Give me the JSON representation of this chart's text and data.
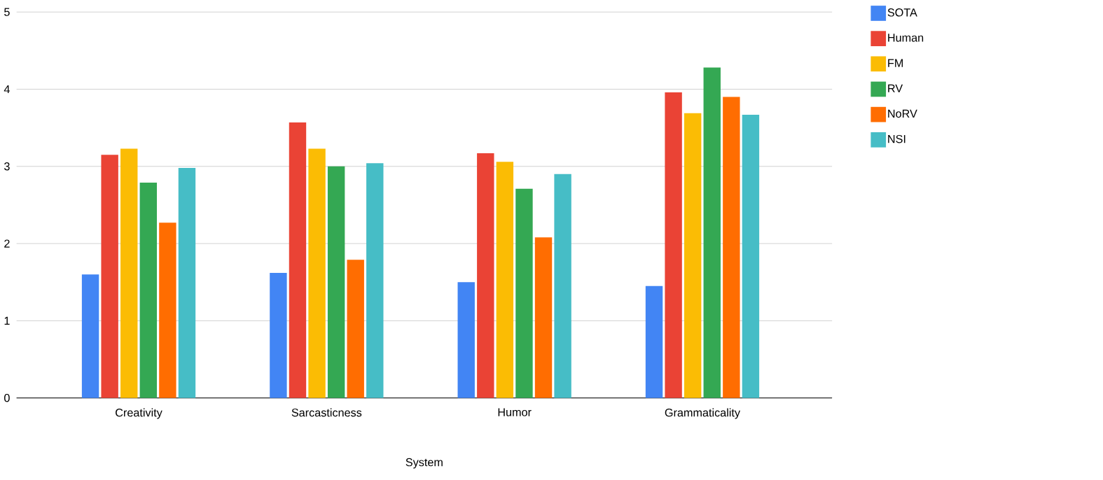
{
  "chart_data": {
    "type": "bar",
    "xlabel": "System",
    "categories": [
      "Creativity",
      "Sarcasticness",
      "Humor",
      "Grammaticality"
    ],
    "series": [
      {
        "name": "SOTA",
        "color": "#4285f4",
        "values": [
          1.6,
          1.62,
          1.5,
          1.45
        ]
      },
      {
        "name": "Human",
        "color": "#ea4335",
        "values": [
          3.15,
          3.57,
          3.17,
          3.96
        ]
      },
      {
        "name": "FM",
        "color": "#fbbc04",
        "values": [
          3.23,
          3.23,
          3.06,
          3.69
        ]
      },
      {
        "name": "RV",
        "color": "#34a853",
        "values": [
          2.79,
          3.0,
          2.71,
          4.28
        ]
      },
      {
        "name": "NoRV",
        "color": "#ff6d01",
        "values": [
          2.27,
          1.79,
          2.08,
          3.9
        ]
      },
      {
        "name": "NSI",
        "color": "#46bdc6",
        "values": [
          2.98,
          3.04,
          2.9,
          3.67
        ]
      }
    ],
    "ylim": [
      0,
      5
    ],
    "yticks": [
      0,
      1,
      2,
      3,
      4,
      5
    ],
    "grid": "y",
    "legend": "right"
  }
}
